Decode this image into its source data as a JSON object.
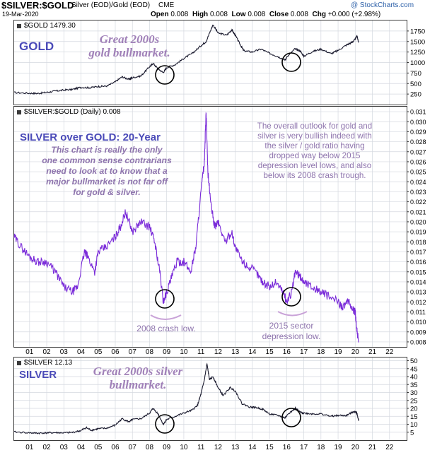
{
  "header": {
    "title": "$SILVER:$GOLD",
    "subtitle": "Silver (EOD)/Gold (EOD)",
    "exchange": "CME",
    "date": "19-Mar-2020",
    "watermark": "@ StockCharts.com",
    "open_label": "Open",
    "open_value": "0.008",
    "high_label": "High",
    "high_value": "0.008",
    "low_label": "Low",
    "low_value": "0.008",
    "close_label": "Close",
    "close_value": "0.008",
    "chg_label": "Chg",
    "chg_value": "+0.000 (+2.98%)"
  },
  "colors": {
    "price_line": "#1a1a2e",
    "ratio_line": "#7a2bd9",
    "grid": "#d4d8df",
    "panel_border": "#3a3a3a",
    "annotation_arc": "#c9a3d8",
    "legend_square": "#3a3a3a"
  },
  "chart_data": [
    {
      "panel": "gold",
      "type": "line",
      "legend": "$GOLD 1479.30",
      "label": "GOLD",
      "annotation": "Great 2000s gold bullmarket.",
      "ylim": [
        0,
        2000
      ],
      "yticks": [
        250,
        500,
        750,
        1000,
        1250,
        1500,
        1750
      ],
      "xlim": [
        2000.1,
        2023.0
      ],
      "series": [
        {
          "name": "$GOLD",
          "x": [
            2000.1,
            2001.0,
            2001.5,
            2002.0,
            2002.5,
            2003.0,
            2003.5,
            2004.0,
            2004.5,
            2005.0,
            2005.5,
            2006.0,
            2006.4,
            2006.8,
            2007.0,
            2007.5,
            2008.0,
            2008.2,
            2008.5,
            2008.8,
            2009.0,
            2009.5,
            2010.0,
            2010.5,
            2011.0,
            2011.3,
            2011.6,
            2011.7,
            2012.0,
            2012.5,
            2012.8,
            2013.0,
            2013.3,
            2013.5,
            2014.0,
            2014.5,
            2015.0,
            2015.5,
            2015.9,
            2016.0,
            2016.5,
            2016.8,
            2017.0,
            2017.5,
            2018.0,
            2018.6,
            2019.0,
            2019.5,
            2019.8,
            2020.0,
            2020.1,
            2020.2
          ],
          "y": [
            285,
            270,
            265,
            290,
            320,
            345,
            360,
            410,
            400,
            430,
            440,
            540,
            660,
            600,
            640,
            680,
            900,
            980,
            850,
            760,
            880,
            950,
            1100,
            1220,
            1400,
            1500,
            1800,
            1900,
            1700,
            1650,
            1780,
            1650,
            1420,
            1280,
            1250,
            1320,
            1220,
            1140,
            1060,
            1120,
            1330,
            1270,
            1150,
            1260,
            1320,
            1210,
            1290,
            1420,
            1480,
            1550,
            1640,
            1479
          ]
        }
      ]
    },
    {
      "panel": "ratio",
      "type": "line",
      "legend": "$SILVER:$GOLD (Daily) 0.008",
      "label": "SILVER over GOLD: 20-Year",
      "annotation": "This chart is really the only one common sense contrarians need to look at to know that a major bullmarket is not far off for gold & silver.",
      "ylim": [
        0.0075,
        0.0315
      ],
      "yticks": [
        0.008,
        0.009,
        0.01,
        0.011,
        0.012,
        0.013,
        0.014,
        0.015,
        0.016,
        0.017,
        0.018,
        0.019,
        0.02,
        0.021,
        0.022,
        0.023,
        0.024,
        0.025,
        0.026,
        0.027,
        0.028,
        0.029,
        0.03,
        0.031
      ],
      "xlim": [
        2000.1,
        2023.0
      ],
      "series": [
        {
          "name": "$SILVER:$GOLD",
          "x": [
            2000.1,
            2000.5,
            2001.0,
            2001.5,
            2002.0,
            2002.5,
            2003.0,
            2003.5,
            2003.8,
            2004.2,
            2004.4,
            2004.8,
            2005.0,
            2005.5,
            2006.0,
            2006.3,
            2006.6,
            2007.0,
            2007.5,
            2008.0,
            2008.3,
            2008.6,
            2008.8,
            2009.0,
            2009.3,
            2009.6,
            2010.0,
            2010.4,
            2010.7,
            2011.0,
            2011.2,
            2011.3,
            2011.4,
            2011.6,
            2011.8,
            2012.0,
            2012.4,
            2012.8,
            2013.0,
            2013.4,
            2013.8,
            2014.2,
            2014.6,
            2015.0,
            2015.4,
            2015.8,
            2016.0,
            2016.3,
            2016.5,
            2016.8,
            2017.0,
            2017.5,
            2018.0,
            2018.5,
            2019.0,
            2019.3,
            2019.6,
            2019.9,
            2020.0,
            2020.1,
            2020.2
          ],
          "y": [
            0.0185,
            0.0175,
            0.0165,
            0.016,
            0.016,
            0.015,
            0.0135,
            0.013,
            0.0135,
            0.017,
            0.0165,
            0.015,
            0.017,
            0.0175,
            0.0185,
            0.0195,
            0.021,
            0.019,
            0.02,
            0.0195,
            0.018,
            0.015,
            0.012,
            0.013,
            0.0145,
            0.016,
            0.016,
            0.015,
            0.0175,
            0.023,
            0.026,
            0.031,
            0.025,
            0.0215,
            0.0195,
            0.02,
            0.018,
            0.019,
            0.0175,
            0.016,
            0.0155,
            0.015,
            0.014,
            0.0135,
            0.014,
            0.013,
            0.012,
            0.013,
            0.015,
            0.0145,
            0.014,
            0.0135,
            0.013,
            0.0125,
            0.012,
            0.0115,
            0.012,
            0.0112,
            0.011,
            0.0092,
            0.008
          ]
        }
      ]
    },
    {
      "panel": "silver",
      "type": "line",
      "legend": "$SILVER 12.13",
      "label": "SILVER",
      "annotation": "Great 2000s silver bullmarket.",
      "ylim": [
        0,
        52
      ],
      "yticks": [
        5,
        10,
        15,
        20,
        25,
        30,
        35,
        40,
        45,
        50
      ],
      "xlim": [
        2000.1,
        2023.0
      ],
      "xticks": [
        2001,
        2002,
        2003,
        2004,
        2005,
        2006,
        2007,
        2008,
        2009,
        2010,
        2011,
        2012,
        2013,
        2014,
        2015,
        2016,
        2017,
        2018,
        2019,
        2020,
        2021,
        2022
      ],
      "xticklabels": [
        "01",
        "02",
        "03",
        "04",
        "05",
        "06",
        "07",
        "08",
        "09",
        "10",
        "11",
        "12",
        "13",
        "14",
        "15",
        "16",
        "17",
        "18",
        "19",
        "20",
        "21",
        "22"
      ],
      "series": [
        {
          "name": "$SILVER",
          "x": [
            2000.1,
            2001.0,
            2001.5,
            2002.0,
            2002.5,
            2003.0,
            2003.5,
            2004.0,
            2004.3,
            2004.6,
            2005.0,
            2005.5,
            2006.0,
            2006.4,
            2006.8,
            2007.0,
            2007.5,
            2008.0,
            2008.2,
            2008.5,
            2008.8,
            2009.0,
            2009.5,
            2010.0,
            2010.5,
            2010.8,
            2011.0,
            2011.2,
            2011.35,
            2011.5,
            2011.7,
            2012.0,
            2012.3,
            2012.7,
            2013.0,
            2013.4,
            2013.8,
            2014.2,
            2014.6,
            2015.0,
            2015.5,
            2015.9,
            2016.0,
            2016.5,
            2016.8,
            2017.0,
            2017.5,
            2018.0,
            2018.6,
            2019.0,
            2019.5,
            2019.8,
            2020.0,
            2020.1,
            2020.2
          ],
          "y": [
            5.2,
            4.6,
            4.4,
            4.6,
            4.7,
            4.6,
            4.9,
            6.0,
            7.9,
            6.2,
            7.2,
            7.5,
            9.5,
            13.5,
            11.5,
            13.0,
            13.5,
            17.0,
            20.0,
            16.5,
            10.0,
            13.0,
            15.0,
            17.0,
            19.0,
            22.0,
            29.0,
            38.0,
            48.0,
            38.0,
            40.0,
            33.0,
            28.0,
            33.0,
            31.0,
            23.0,
            21.0,
            20.5,
            19.5,
            16.5,
            15.5,
            14.0,
            15.5,
            20.0,
            17.5,
            17.0,
            16.5,
            16.5,
            15.0,
            15.5,
            15.5,
            17.5,
            18.0,
            16.8,
            12.13
          ]
        }
      ]
    }
  ],
  "notes": {
    "gold_label": "GOLD",
    "gold_annotation_line1": "Great 2000s",
    "gold_annotation_line2": "gold bullmarket.",
    "ratio_title": "SILVER over GOLD: 20-Year",
    "ratio_sub1": "This chart is really the only",
    "ratio_sub2": "one common sense contrarians",
    "ratio_sub3": "need to look at to know that a",
    "ratio_sub4": "major bullmarket is not far off",
    "ratio_sub5": "for gold & silver.",
    "outlook1": "The overall outlook for gold and",
    "outlook2": "silver is very bullish indeed with",
    "outlook3": "the silver / gold ratio having",
    "outlook4": "dropped way below 2015",
    "outlook5": "depression level lows, and also",
    "outlook6": "below its 2008 crash trough.",
    "crash2008": "2008 crash low.",
    "sector2015_l1": "2015 sector",
    "sector2015_l2": "depression low.",
    "silver_label": "SILVER",
    "silver_annotation_line1": "Great 2000s silver",
    "silver_annotation_line2": "bullmarket."
  }
}
